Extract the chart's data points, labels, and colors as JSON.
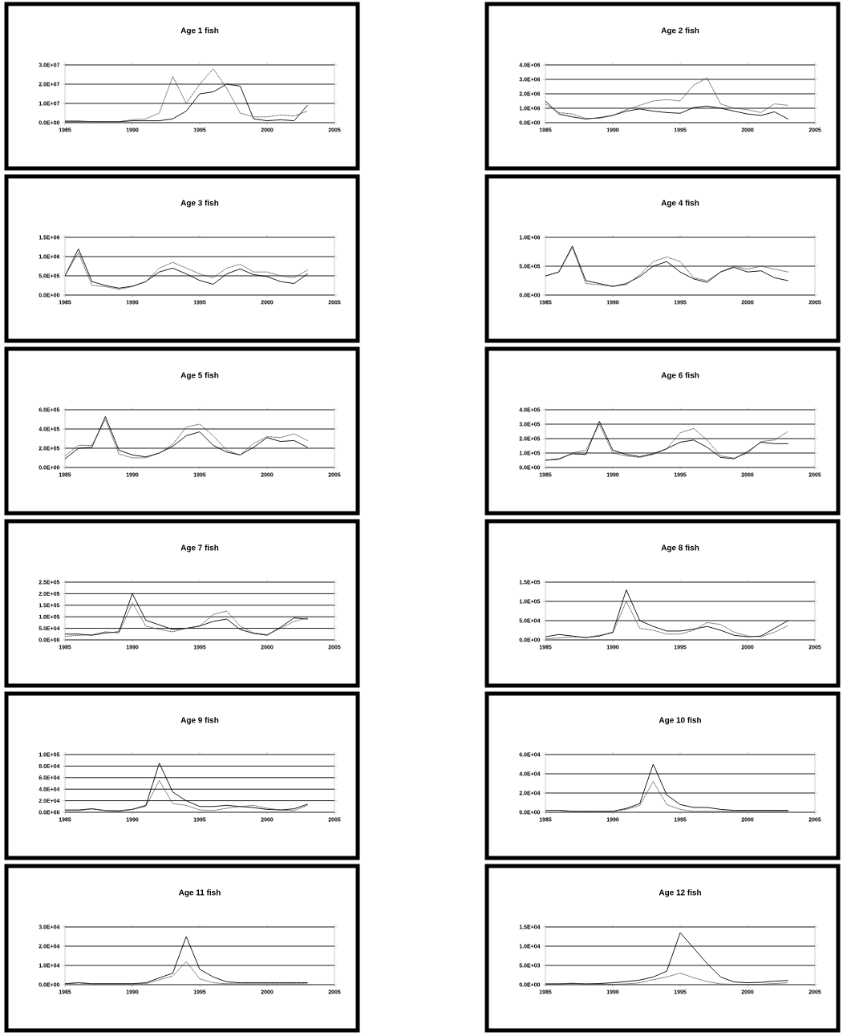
{
  "chart_data": [
    {
      "type": "line",
      "title": "Age 1 fish",
      "x": [
        1985,
        1986,
        1987,
        1988,
        1989,
        1990,
        1991,
        1992,
        1993,
        1994,
        1995,
        1996,
        1997,
        1998,
        1999,
        2000,
        2001,
        2002,
        2003
      ],
      "xlim": [
        1985,
        2005
      ],
      "xticks": [
        1985,
        1990,
        1995,
        2000,
        2005
      ],
      "ylim": [
        0,
        30000000.0
      ],
      "yticks": [
        {
          "value": 0,
          "label": "0.0E+00"
        },
        {
          "value": 10000000.0,
          "label": "1.0E+07"
        },
        {
          "value": 20000000.0,
          "label": "2.0E+07"
        },
        {
          "value": 30000000.0,
          "label": "3.0E+07"
        }
      ],
      "grid": "y",
      "series": [
        {
          "color": "#000000",
          "line_style": "solid",
          "values": [
            500000.0,
            500000.0,
            500000.0,
            500000.0,
            500000.0,
            1000000.0,
            1000000.0,
            1000000.0,
            2000000.0,
            6000000.0,
            15000000.0,
            16000000.0,
            20000000.0,
            19000000.0,
            2000000.0,
            1000000.0,
            1500000.0,
            1000000.0,
            9000000.0
          ]
        },
        {
          "color": "#404040",
          "line_style": "dotted",
          "values": [
            1000000.0,
            1000000.0,
            500000.0,
            500000.0,
            500000.0,
            1500000.0,
            2000000.0,
            5000000.0,
            24000000.0,
            10000000.0,
            20000000.0,
            28000000.0,
            18000000.0,
            5000000.0,
            3000000.0,
            3000000.0,
            4000000.0,
            3500000.0,
            6000000.0
          ]
        }
      ]
    },
    {
      "type": "line",
      "title": "Age 2 fish",
      "x": [
        1985,
        1986,
        1987,
        1988,
        1989,
        1990,
        1991,
        1992,
        1993,
        1994,
        1995,
        1996,
        1997,
        1998,
        1999,
        2000,
        2001,
        2002,
        2003
      ],
      "xlim": [
        1985,
        2005
      ],
      "xticks": [
        1985,
        1990,
        1995,
        2000,
        2005
      ],
      "ylim": [
        0,
        4000000.0
      ],
      "yticks": [
        {
          "value": 0,
          "label": "0.0E+00"
        },
        {
          "value": 1000000.0,
          "label": "1.0E+06"
        },
        {
          "value": 2000000.0,
          "label": "2.0E+06"
        },
        {
          "value": 3000000.0,
          "label": "3.0E+06"
        },
        {
          "value": 4000000.0,
          "label": "4.0E+06"
        }
      ],
      "grid": "y",
      "series": [
        {
          "color": "#000000",
          "line_style": "solid",
          "values": [
            1500000.0,
            600000.0,
            400000.0,
            250000.0,
            350000.0,
            500000.0,
            800000.0,
            950000.0,
            800000.0,
            700000.0,
            650000.0,
            1050000.0,
            1150000.0,
            1000000.0,
            800000.0,
            600000.0,
            500000.0,
            750000.0,
            250000.0
          ]
        },
        {
          "color": "#404040",
          "line_style": "dotted",
          "values": [
            1300000.0,
            700000.0,
            600000.0,
            300000.0,
            300000.0,
            500000.0,
            900000.0,
            1200000.0,
            1500000.0,
            1600000.0,
            1500000.0,
            2600000.0,
            3100000.0,
            1300000.0,
            1000000.0,
            900000.0,
            700000.0,
            1300000.0,
            1200000.0
          ]
        }
      ]
    },
    {
      "type": "line",
      "title": "Age 3 fish",
      "x": [
        1985,
        1986,
        1987,
        1988,
        1989,
        1990,
        1991,
        1992,
        1993,
        1994,
        1995,
        1996,
        1997,
        1998,
        1999,
        2000,
        2001,
        2002,
        2003
      ],
      "xlim": [
        1985,
        2005
      ],
      "xticks": [
        1985,
        1990,
        1995,
        2000,
        2005
      ],
      "ylim": [
        0,
        1500000.0
      ],
      "yticks": [
        {
          "value": 0,
          "label": "0.0E+00"
        },
        {
          "value": 500000.0,
          "label": "5.0E+05"
        },
        {
          "value": 1000000.0,
          "label": "1.0E+06"
        },
        {
          "value": 1500000.0,
          "label": "1.5E+06"
        }
      ],
      "grid": "y",
      "series": [
        {
          "color": "#000000",
          "line_style": "solid",
          "values": [
            500000.0,
            1200000.0,
            350000.0,
            250000.0,
            180000.0,
            230000.0,
            350000.0,
            600000.0,
            700000.0,
            550000.0,
            380000.0,
            280000.0,
            550000.0,
            680000.0,
            530000.0,
            480000.0,
            350000.0,
            300000.0,
            550000.0
          ]
        },
        {
          "color": "#404040",
          "line_style": "dotted",
          "values": [
            500000.0,
            1100000.0,
            250000.0,
            220000.0,
            150000.0,
            220000.0,
            350000.0,
            700000.0,
            850000.0,
            700000.0,
            550000.0,
            450000.0,
            700000.0,
            800000.0,
            600000.0,
            600000.0,
            500000.0,
            450000.0,
            650000.0
          ]
        }
      ]
    },
    {
      "type": "line",
      "title": "Age 4 fish",
      "x": [
        1985,
        1986,
        1987,
        1988,
        1989,
        1990,
        1991,
        1992,
        1993,
        1994,
        1995,
        1996,
        1997,
        1998,
        1999,
        2000,
        2001,
        2002,
        2003
      ],
      "xlim": [
        1985,
        2005
      ],
      "xticks": [
        1985,
        1990,
        1995,
        2000,
        2005
      ],
      "ylim": [
        0,
        1000000.0
      ],
      "yticks": [
        {
          "value": 0,
          "label": "0.0E+00"
        },
        {
          "value": 500000.0,
          "label": "5.0E+05"
        },
        {
          "value": 1000000.0,
          "label": "1.0E+06"
        }
      ],
      "grid": "y",
      "series": [
        {
          "color": "#000000",
          "line_style": "solid",
          "values": [
            330000.0,
            400000.0,
            850000.0,
            250000.0,
            200000.0,
            150000.0,
            200000.0,
            320000.0,
            500000.0,
            580000.0,
            400000.0,
            280000.0,
            220000.0,
            400000.0,
            480000.0,
            400000.0,
            420000.0,
            300000.0,
            250000.0
          ]
        },
        {
          "color": "#404040",
          "line_style": "dotted",
          "values": [
            330000.0,
            400000.0,
            820000.0,
            200000.0,
            180000.0,
            150000.0,
            180000.0,
            350000.0,
            580000.0,
            660000.0,
            580000.0,
            300000.0,
            250000.0,
            400000.0,
            500000.0,
            450000.0,
            500000.0,
            450000.0,
            400000.0
          ]
        }
      ]
    },
    {
      "type": "line",
      "title": "Age 5 fish",
      "x": [
        1985,
        1986,
        1987,
        1988,
        1989,
        1990,
        1991,
        1992,
        1993,
        1994,
        1995,
        1996,
        1997,
        1998,
        1999,
        2000,
        2001,
        2002,
        2003
      ],
      "xlim": [
        1985,
        2005
      ],
      "xticks": [
        1985,
        1990,
        1995,
        2000,
        2005
      ],
      "ylim": [
        0,
        600000.0
      ],
      "yticks": [
        {
          "value": 0,
          "label": "0.0E+00"
        },
        {
          "value": 200000.0,
          "label": "2.0E+05"
        },
        {
          "value": 400000.0,
          "label": "4.0E+05"
        },
        {
          "value": 600000.0,
          "label": "6.0E+05"
        }
      ],
      "grid": "y",
      "series": [
        {
          "color": "#000000",
          "line_style": "solid",
          "values": [
            90000.0,
            200000.0,
            210000.0,
            530000.0,
            180000.0,
            130000.0,
            110000.0,
            150000.0,
            220000.0,
            330000.0,
            370000.0,
            230000.0,
            160000.0,
            130000.0,
            210000.0,
            310000.0,
            270000.0,
            280000.0,
            210000.0
          ]
        },
        {
          "color": "#404040",
          "line_style": "dotted",
          "values": [
            120000.0,
            230000.0,
            230000.0,
            500000.0,
            140000.0,
            100000.0,
            100000.0,
            150000.0,
            240000.0,
            420000.0,
            450000.0,
            330000.0,
            180000.0,
            130000.0,
            250000.0,
            320000.0,
            310000.0,
            350000.0,
            280000.0
          ]
        }
      ]
    },
    {
      "type": "line",
      "title": "Age 6 fish",
      "x": [
        1985,
        1986,
        1987,
        1988,
        1989,
        1990,
        1991,
        1992,
        1993,
        1994,
        1995,
        1996,
        1997,
        1998,
        1999,
        2000,
        2001,
        2002,
        2003
      ],
      "xlim": [
        1985,
        2005
      ],
      "xticks": [
        1985,
        1990,
        1995,
        2000,
        2005
      ],
      "ylim": [
        0,
        400000.0
      ],
      "yticks": [
        {
          "value": 0,
          "label": "0.0E+00"
        },
        {
          "value": 100000.0,
          "label": "1.0E+05"
        },
        {
          "value": 200000.0,
          "label": "2.0E+05"
        },
        {
          "value": 300000.0,
          "label": "3.0E+05"
        },
        {
          "value": 400000.0,
          "label": "4.0E+05"
        }
      ],
      "grid": "y",
      "series": [
        {
          "color": "#000000",
          "line_style": "solid",
          "values": [
            50000.0,
            60000.0,
            95000.0,
            90000.0,
            320000.0,
            120000.0,
            90000.0,
            75000.0,
            95000.0,
            130000.0,
            175000.0,
            190000.0,
            140000.0,
            70000.0,
            60000.0,
            110000.0,
            175000.0,
            165000.0,
            165000.0
          ]
        },
        {
          "color": "#404040",
          "line_style": "dotted",
          "values": [
            50000.0,
            55000.0,
            100000.0,
            120000.0,
            300000.0,
            100000.0,
            80000.0,
            70000.0,
            90000.0,
            130000.0,
            240000.0,
            270000.0,
            190000.0,
            80000.0,
            65000.0,
            100000.0,
            180000.0,
            190000.0,
            250000.0
          ]
        }
      ]
    },
    {
      "type": "line",
      "title": "Age 7 fish",
      "x": [
        1985,
        1986,
        1987,
        1988,
        1989,
        1990,
        1991,
        1992,
        1993,
        1994,
        1995,
        1996,
        1997,
        1998,
        1999,
        2000,
        2001,
        2002,
        2003
      ],
      "xlim": [
        1985,
        2005
      ],
      "xticks": [
        1985,
        1990,
        1995,
        2000,
        2005
      ],
      "ylim": [
        0,
        250000.0
      ],
      "yticks": [
        {
          "value": 0,
          "label": "0.0E+00"
        },
        {
          "value": 50000.0,
          "label": "5.0E+04"
        },
        {
          "value": 100000.0,
          "label": "1.0E+05"
        },
        {
          "value": 150000.0,
          "label": "1.5E+05"
        },
        {
          "value": 200000.0,
          "label": "2.0E+05"
        },
        {
          "value": 250000.0,
          "label": "2.5E+05"
        }
      ],
      "grid": "y",
      "series": [
        {
          "color": "#000000",
          "line_style": "solid",
          "values": [
            25000.0,
            25000.0,
            20000.0,
            30000.0,
            35000.0,
            200000.0,
            85000.0,
            65000.0,
            45000.0,
            50000.0,
            60000.0,
            80000.0,
            90000.0,
            45000.0,
            28000.0,
            20000.0,
            55000.0,
            95000.0,
            90000.0
          ]
        },
        {
          "color": "#404040",
          "line_style": "dotted",
          "values": [
            15000.0,
            20000.0,
            22000.0,
            35000.0,
            30000.0,
            160000.0,
            60000.0,
            45000.0,
            35000.0,
            50000.0,
            60000.0,
            110000.0,
            125000.0,
            60000.0,
            30000.0,
            23000.0,
            50000.0,
            80000.0,
            95000.0
          ]
        }
      ]
    },
    {
      "type": "line",
      "title": "Age 8 fish",
      "x": [
        1985,
        1986,
        1987,
        1988,
        1989,
        1990,
        1991,
        1992,
        1993,
        1994,
        1995,
        1996,
        1997,
        1998,
        1999,
        2000,
        2001,
        2002,
        2003
      ],
      "xlim": [
        1985,
        2005
      ],
      "xticks": [
        1985,
        1990,
        1995,
        2000,
        2005
      ],
      "ylim": [
        0,
        150000.0
      ],
      "yticks": [
        {
          "value": 0,
          "label": "0.0E+00"
        },
        {
          "value": 50000.0,
          "label": "5.0E+04"
        },
        {
          "value": 100000.0,
          "label": "1.0E+05"
        },
        {
          "value": 150000.0,
          "label": "1.5E+05"
        }
      ],
      "grid": "y",
      "series": [
        {
          "color": "#000000",
          "line_style": "solid",
          "values": [
            8000.0,
            14000.0,
            10000.0,
            6000.0,
            10000.0,
            20000.0,
            130000.0,
            50000.0,
            35000.0,
            23000.0,
            23000.0,
            28000.0,
            35000.0,
            25000.0,
            12000.0,
            8000.0,
            10000.0,
            30000.0,
            50000.0
          ]
        },
        {
          "color": "#404040",
          "line_style": "dotted",
          "values": [
            3000.0,
            5000.0,
            8000.0,
            6000.0,
            12000.0,
            18000.0,
            100000.0,
            30000.0,
            25000.0,
            15000.0,
            15000.0,
            25000.0,
            45000.0,
            40000.0,
            20000.0,
            10000.0,
            8000.0,
            20000.0,
            37000.0
          ]
        }
      ]
    },
    {
      "type": "line",
      "title": "Age 9 fish",
      "x": [
        1985,
        1986,
        1987,
        1988,
        1989,
        1990,
        1991,
        1992,
        1993,
        1994,
        1995,
        1996,
        1997,
        1998,
        1999,
        2000,
        2001,
        2002,
        2003
      ],
      "xlim": [
        1985,
        2005
      ],
      "xticks": [
        1985,
        1990,
        1995,
        2000,
        2005
      ],
      "ylim": [
        0,
        100000.0
      ],
      "yticks": [
        {
          "value": 0,
          "label": "0.0E+00"
        },
        {
          "value": 20000.0,
          "label": "2.0E+04"
        },
        {
          "value": 40000.0,
          "label": "4.0E+04"
        },
        {
          "value": 60000.0,
          "label": "6.0E+04"
        },
        {
          "value": 80000.0,
          "label": "8.0E+04"
        },
        {
          "value": 100000.0,
          "label": "1.0E+05"
        }
      ],
      "grid": "y",
      "series": [
        {
          "color": "#000000",
          "line_style": "solid",
          "values": [
            4000.0,
            4000.0,
            6000.0,
            3000.0,
            2000.0,
            5000.0,
            12000.0,
            85000.0,
            35000.0,
            20000.0,
            10000.0,
            10000.0,
            12000.0,
            10000.0,
            8000.0,
            5000.0,
            4000.0,
            6000.0,
            14000.0
          ]
        },
        {
          "color": "#404040",
          "line_style": "dotted",
          "values": [
            3000.0,
            3000.0,
            6000.0,
            3000.0,
            3000.0,
            5000.0,
            10000.0,
            55000.0,
            15000.0,
            12000.0,
            4000.0,
            3000.0,
            7000.0,
            10000.0,
            12000.0,
            7000.0,
            4000.0,
            3000.0,
            12000.0
          ]
        }
      ]
    },
    {
      "type": "line",
      "title": "Age 10 fish",
      "x": [
        1985,
        1986,
        1987,
        1988,
        1989,
        1990,
        1991,
        1992,
        1993,
        1994,
        1995,
        1996,
        1997,
        1998,
        1999,
        2000,
        2001,
        2002,
        2003
      ],
      "xlim": [
        1985,
        2005
      ],
      "xticks": [
        1985,
        1990,
        1995,
        2000,
        2005
      ],
      "ylim": [
        0,
        60000.0
      ],
      "yticks": [
        {
          "value": 0,
          "label": "0.0E+00"
        },
        {
          "value": 20000.0,
          "label": "2.0E+04"
        },
        {
          "value": 40000.0,
          "label": "4.0E+04"
        },
        {
          "value": 60000.0,
          "label": "6.0E+04"
        }
      ],
      "grid": "y",
      "series": [
        {
          "color": "#000000",
          "line_style": "solid",
          "values": [
            2000.0,
            2000.0,
            1000.0,
            1000.0,
            1000.0,
            1000.0,
            4000.0,
            9000.0,
            50000.0,
            18000.0,
            8000.0,
            5000.0,
            5000.0,
            3000.0,
            2000.0,
            2000.0,
            2000.0,
            2000.0,
            2000.0
          ]
        },
        {
          "color": "#404040",
          "line_style": "dotted",
          "values": [
            2000.0,
            2000.0,
            1000.0,
            1000.0,
            1000.0,
            1000.0,
            3000.0,
            7000.0,
            32000.0,
            8000.0,
            3000.0,
            1000.0,
            1000.0,
            1000.0,
            1000.0,
            1000.0,
            1000.0,
            1000.0,
            1000.0
          ]
        }
      ]
    },
    {
      "type": "line",
      "title": "Age 11 fish",
      "x": [
        1985,
        1986,
        1987,
        1988,
        1989,
        1990,
        1991,
        1992,
        1993,
        1994,
        1995,
        1996,
        1997,
        1998,
        1999,
        2000,
        2001,
        2002,
        2003
      ],
      "xlim": [
        1985,
        2005
      ],
      "xticks": [
        1985,
        1990,
        1995,
        2000,
        2005
      ],
      "ylim": [
        0,
        30000.0
      ],
      "yticks": [
        {
          "value": 0,
          "label": "0.0E+00"
        },
        {
          "value": 10000.0,
          "label": "1.0E+04"
        },
        {
          "value": 20000.0,
          "label": "2.0E+04"
        },
        {
          "value": 30000.0,
          "label": "3.0E+04"
        }
      ],
      "grid": "y",
      "series": [
        {
          "color": "#000000",
          "line_style": "solid",
          "values": [
            500,
            1000,
            500,
            500,
            500,
            500,
            1000,
            3500,
            6000,
            25000.0,
            8000,
            4000,
            1500,
            1000,
            1000,
            1000,
            1000,
            1000,
            1000
          ]
        },
        {
          "color": "#404040",
          "line_style": "dotted",
          "values": [
            500,
            1000,
            500,
            500,
            500,
            500,
            500,
            2500,
            4500,
            12000.0,
            3000,
            1000,
            500,
            500,
            500,
            500,
            500,
            500,
            500
          ]
        }
      ]
    },
    {
      "type": "line",
      "title": "Age 12 fish",
      "x": [
        1985,
        1986,
        1987,
        1988,
        1989,
        1990,
        1991,
        1992,
        1993,
        1994,
        1995,
        1996,
        1997,
        1998,
        1999,
        2000,
        2001,
        2002,
        2003
      ],
      "xlim": [
        1985,
        2005
      ],
      "xticks": [
        1985,
        1990,
        1995,
        2000,
        2005
      ],
      "ylim": [
        0,
        15000.0
      ],
      "yticks": [
        {
          "value": 0,
          "label": "0.0E+00"
        },
        {
          "value": 5000.0,
          "label": "5.0E+03"
        },
        {
          "value": 10000.0,
          "label": "1.0E+04"
        },
        {
          "value": 15000.0,
          "label": "1.5E+04"
        }
      ],
      "grid": "y",
      "series": [
        {
          "color": "#000000",
          "line_style": "solid",
          "values": [
            200,
            200,
            300,
            200,
            300,
            500,
            800,
            1200,
            2000,
            3500,
            13500.0,
            9500,
            5500,
            2000,
            700,
            500,
            600,
            900,
            1100
          ]
        },
        {
          "color": "#404040",
          "line_style": "dotted",
          "values": [
            200,
            200,
            400,
            200,
            100,
            100,
            200,
            500,
            1300,
            2000,
            3000,
            1800,
            800,
            200,
            100,
            100,
            100,
            300,
            500
          ]
        }
      ]
    }
  ]
}
